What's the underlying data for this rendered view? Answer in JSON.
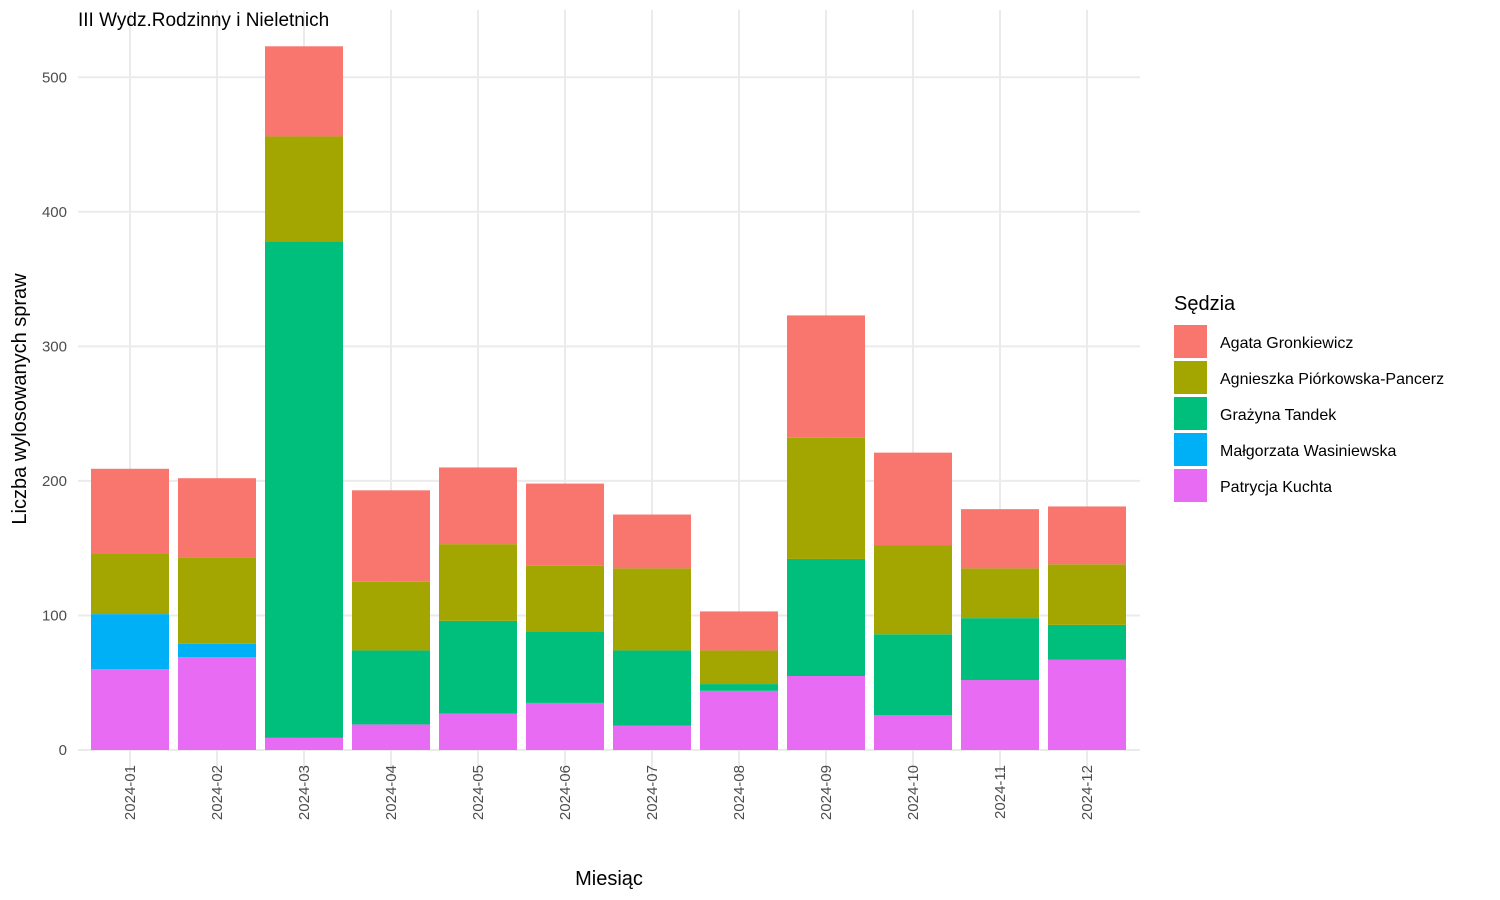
{
  "chart_data": {
    "type": "bar",
    "stacked": true,
    "title": "III Wydz.Rodzinny i Nieletnich",
    "xlabel": "Miesiąc",
    "ylabel": "Liczba wylosowanych spraw",
    "ylim": [
      0,
      530
    ],
    "yticks": [
      0,
      100,
      200,
      300,
      400,
      500
    ],
    "grid": true,
    "legend_title": "Sędzia",
    "legend_position": "right",
    "categories": [
      "2024-01",
      "2024-02",
      "2024-03",
      "2024-04",
      "2024-05",
      "2024-06",
      "2024-07",
      "2024-08",
      "2024-09",
      "2024-10",
      "2024-11",
      "2024-12"
    ],
    "series": [
      {
        "name": "Patrycja Kuchta",
        "color": "#E76BF3",
        "values": [
          60,
          69,
          9,
          19,
          27,
          35,
          18,
          44,
          55,
          26,
          52,
          67
        ]
      },
      {
        "name": "Małgorzata Wasiniewska",
        "color": "#00B0F6",
        "values": [
          41,
          10,
          0,
          0,
          0,
          0,
          0,
          0,
          0,
          0,
          0,
          0
        ]
      },
      {
        "name": "Grażyna Tandek",
        "color": "#00BF7D",
        "values": [
          0,
          0,
          369,
          55,
          69,
          53,
          56,
          5,
          87,
          60,
          46,
          26
        ]
      },
      {
        "name": "Agnieszka Piórkowska-Pancerz",
        "color": "#A3A500",
        "values": [
          45,
          64,
          78,
          51,
          57,
          49,
          61,
          25,
          90,
          66,
          37,
          45
        ]
      },
      {
        "name": "Agata Gronkiewicz",
        "color": "#F8766D",
        "values": [
          63,
          59,
          67,
          68,
          57,
          61,
          40,
          29,
          91,
          69,
          44,
          43
        ]
      }
    ],
    "legend_order": [
      "Agata Gronkiewicz",
      "Agnieszka Piórkowska-Pancerz",
      "Grażyna Tandek",
      "Małgorzata Wasiniewska",
      "Patrycja Kuchta"
    ]
  }
}
